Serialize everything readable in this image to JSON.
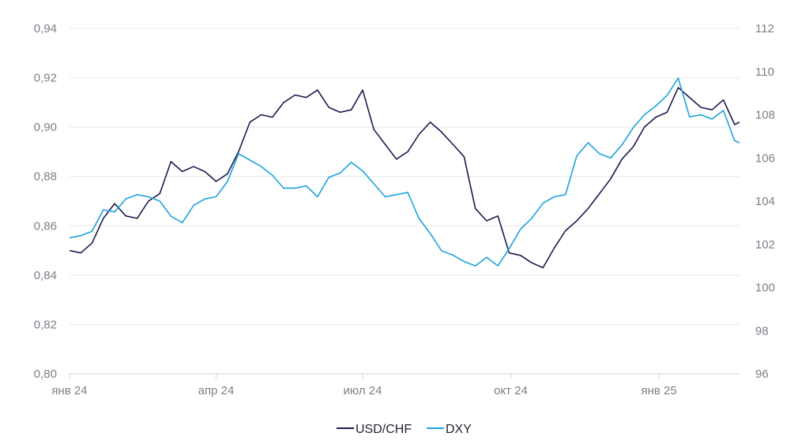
{
  "chart_data": {
    "type": "line",
    "title": "",
    "grid": true,
    "legend_position": "bottom-center",
    "x_ticks": [
      "янв 24",
      "апр 24",
      "июл 24",
      "окт 24",
      "янв 25"
    ],
    "x_range": [
      "2024-01-01",
      "2025-02-20"
    ],
    "y_left": {
      "range": [
        0.8,
        0.94
      ],
      "ticks": [
        "0,80",
        "0,82",
        "0,84",
        "0,86",
        "0,88",
        "0,90",
        "0,92",
        "0,94"
      ]
    },
    "y_right": {
      "range": [
        96,
        112
      ],
      "ticks": [
        "96",
        "98",
        "100",
        "102",
        "104",
        "106",
        "108",
        "110",
        "112"
      ]
    },
    "series": [
      {
        "name": "USD/CHF",
        "axis": "left",
        "color": "#1b1a4e",
        "points": [
          [
            "2024-01-01",
            0.85
          ],
          [
            "2024-01-08",
            0.849
          ],
          [
            "2024-01-15",
            0.853
          ],
          [
            "2024-01-22",
            0.863
          ],
          [
            "2024-01-29",
            0.869
          ],
          [
            "2024-02-05",
            0.864
          ],
          [
            "2024-02-12",
            0.863
          ],
          [
            "2024-02-19",
            0.87
          ],
          [
            "2024-02-26",
            0.873
          ],
          [
            "2024-03-04",
            0.886
          ],
          [
            "2024-03-11",
            0.882
          ],
          [
            "2024-03-18",
            0.884
          ],
          [
            "2024-03-25",
            0.882
          ],
          [
            "2024-04-01",
            0.878
          ],
          [
            "2024-04-08",
            0.881
          ],
          [
            "2024-04-15",
            0.89
          ],
          [
            "2024-04-22",
            0.902
          ],
          [
            "2024-04-29",
            0.905
          ],
          [
            "2024-05-06",
            0.904
          ],
          [
            "2024-05-13",
            0.91
          ],
          [
            "2024-05-20",
            0.913
          ],
          [
            "2024-05-27",
            0.912
          ],
          [
            "2024-06-03",
            0.915
          ],
          [
            "2024-06-10",
            0.908
          ],
          [
            "2024-06-17",
            0.906
          ],
          [
            "2024-06-24",
            0.907
          ],
          [
            "2024-07-01",
            0.915
          ],
          [
            "2024-07-08",
            0.899
          ],
          [
            "2024-07-15",
            0.893
          ],
          [
            "2024-07-22",
            0.887
          ],
          [
            "2024-07-29",
            0.89
          ],
          [
            "2024-08-05",
            0.897
          ],
          [
            "2024-08-12",
            0.902
          ],
          [
            "2024-08-19",
            0.898
          ],
          [
            "2024-08-26",
            0.893
          ],
          [
            "2024-09-02",
            0.888
          ],
          [
            "2024-09-09",
            0.867
          ],
          [
            "2024-09-16",
            0.862
          ],
          [
            "2024-09-23",
            0.864
          ],
          [
            "2024-09-30",
            0.849
          ],
          [
            "2024-10-07",
            0.848
          ],
          [
            "2024-10-14",
            0.845
          ],
          [
            "2024-10-21",
            0.843
          ],
          [
            "2024-10-28",
            0.851
          ],
          [
            "2024-11-04",
            0.858
          ],
          [
            "2024-11-11",
            0.862
          ],
          [
            "2024-11-18",
            0.867
          ],
          [
            "2024-11-25",
            0.873
          ],
          [
            "2024-12-02",
            0.879
          ],
          [
            "2024-12-09",
            0.887
          ],
          [
            "2024-12-16",
            0.892
          ],
          [
            "2024-12-23",
            0.9
          ],
          [
            "2024-12-30",
            0.904
          ],
          [
            "2025-01-06",
            0.906
          ],
          [
            "2025-01-13",
            0.916
          ],
          [
            "2025-01-20",
            0.912
          ],
          [
            "2025-01-27",
            0.908
          ],
          [
            "2025-02-03",
            0.907
          ],
          [
            "2025-02-10",
            0.911
          ],
          [
            "2025-02-17",
            0.901
          ],
          [
            "2025-02-20",
            0.902
          ]
        ]
      },
      {
        "name": "DXY",
        "axis": "right",
        "color": "#1ba3dc",
        "points": [
          [
            "2024-01-01",
            102.3
          ],
          [
            "2024-01-08",
            102.4
          ],
          [
            "2024-01-15",
            102.6
          ],
          [
            "2024-01-22",
            103.6
          ],
          [
            "2024-01-29",
            103.5
          ],
          [
            "2024-02-05",
            104.1
          ],
          [
            "2024-02-12",
            104.3
          ],
          [
            "2024-02-19",
            104.2
          ],
          [
            "2024-02-26",
            104.0
          ],
          [
            "2024-03-04",
            103.3
          ],
          [
            "2024-03-11",
            103.0
          ],
          [
            "2024-03-18",
            103.8
          ],
          [
            "2024-03-25",
            104.1
          ],
          [
            "2024-04-01",
            104.2
          ],
          [
            "2024-04-08",
            104.9
          ],
          [
            "2024-04-15",
            106.2
          ],
          [
            "2024-04-22",
            105.9
          ],
          [
            "2024-04-29",
            105.6
          ],
          [
            "2024-05-06",
            105.2
          ],
          [
            "2024-05-13",
            104.6
          ],
          [
            "2024-05-20",
            104.6
          ],
          [
            "2024-05-27",
            104.7
          ],
          [
            "2024-06-03",
            104.2
          ],
          [
            "2024-06-10",
            105.1
          ],
          [
            "2024-06-17",
            105.3
          ],
          [
            "2024-06-24",
            105.8
          ],
          [
            "2024-07-01",
            105.4
          ],
          [
            "2024-07-08",
            104.8
          ],
          [
            "2024-07-15",
            104.2
          ],
          [
            "2024-07-22",
            104.3
          ],
          [
            "2024-07-29",
            104.4
          ],
          [
            "2024-08-05",
            103.2
          ],
          [
            "2024-08-12",
            102.5
          ],
          [
            "2024-08-19",
            101.7
          ],
          [
            "2024-08-26",
            101.5
          ],
          [
            "2024-09-02",
            101.2
          ],
          [
            "2024-09-09",
            101.0
          ],
          [
            "2024-09-16",
            101.4
          ],
          [
            "2024-09-23",
            101.0
          ],
          [
            "2024-09-30",
            101.8
          ],
          [
            "2024-10-07",
            102.7
          ],
          [
            "2024-10-14",
            103.2
          ],
          [
            "2024-10-21",
            103.9
          ],
          [
            "2024-10-28",
            104.2
          ],
          [
            "2024-11-04",
            104.3
          ],
          [
            "2024-11-11",
            106.1
          ],
          [
            "2024-11-18",
            106.7
          ],
          [
            "2024-11-25",
            106.2
          ],
          [
            "2024-12-02",
            106.0
          ],
          [
            "2024-12-09",
            106.6
          ],
          [
            "2024-12-16",
            107.4
          ],
          [
            "2024-12-23",
            108.0
          ],
          [
            "2024-12-30",
            108.4
          ],
          [
            "2025-01-06",
            108.9
          ],
          [
            "2025-01-13",
            109.7
          ],
          [
            "2025-01-20",
            107.9
          ],
          [
            "2025-01-27",
            108.0
          ],
          [
            "2025-02-03",
            107.8
          ],
          [
            "2025-02-10",
            108.2
          ],
          [
            "2025-02-17",
            106.8
          ],
          [
            "2025-02-20",
            106.7
          ]
        ]
      }
    ]
  }
}
